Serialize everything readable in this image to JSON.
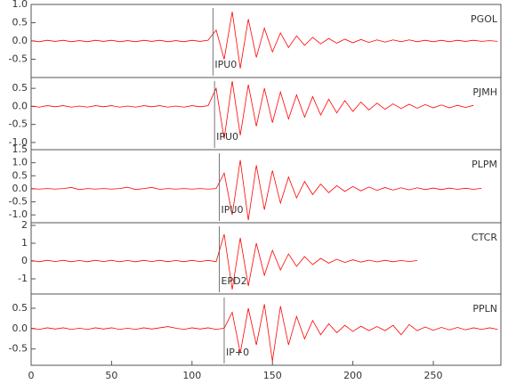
{
  "chart_data": [
    {
      "type": "line",
      "station": "PGOL",
      "pick": "IPU0",
      "pick_x": 113,
      "color": "#ff0000",
      "xlim": [
        0,
        292
      ],
      "ylim": [
        -1.0,
        1.0
      ],
      "yticks": [
        -0.5,
        {
          "value": 0,
          "label": "0.0"
        },
        0.5,
        {
          "value": 1,
          "label": "1.0"
        }
      ],
      "x": [
        0,
        5,
        10,
        15,
        20,
        25,
        30,
        35,
        40,
        45,
        50,
        55,
        60,
        65,
        70,
        75,
        80,
        85,
        90,
        95,
        100,
        105,
        110,
        115,
        120,
        125,
        130,
        135,
        140,
        145,
        150,
        155,
        160,
        165,
        170,
        175,
        180,
        185,
        190,
        195,
        200,
        205,
        210,
        215,
        220,
        225,
        230,
        235,
        240,
        245,
        250,
        255,
        260,
        265,
        270,
        275,
        280,
        285,
        290
      ],
      "values": [
        0.01,
        -0.02,
        0.02,
        -0.01,
        0.02,
        -0.02,
        0.01,
        -0.02,
        0.02,
        -0.01,
        0.02,
        -0.02,
        0.01,
        -0.02,
        0.02,
        -0.01,
        0.02,
        -0.02,
        0.01,
        -0.02,
        0.02,
        -0.01,
        0.02,
        0.3,
        -0.5,
        0.8,
        -0.75,
        0.6,
        -0.45,
        0.35,
        -0.3,
        0.22,
        -0.18,
        0.14,
        -0.12,
        0.1,
        -0.08,
        0.07,
        -0.06,
        0.05,
        -0.05,
        0.04,
        -0.04,
        0.03,
        -0.03,
        0.03,
        -0.02,
        0.03,
        -0.02,
        0.02,
        -0.02,
        0.02,
        -0.02,
        0.02,
        -0.01,
        0.02,
        -0.01,
        0.01,
        -0.01
      ]
    },
    {
      "type": "line",
      "station": "PJMH",
      "pick": "IPU0",
      "pick_x": 114,
      "color": "#ff0000",
      "xlim": [
        0,
        292
      ],
      "ylim": [
        -1.2,
        0.8
      ],
      "yticks": [
        {
          "value": -1,
          "label": "-1.0"
        },
        -0.5,
        {
          "value": 0,
          "label": "0.0"
        },
        0.5
      ],
      "x": [
        0,
        5,
        10,
        15,
        20,
        25,
        30,
        35,
        40,
        45,
        50,
        55,
        60,
        65,
        70,
        75,
        80,
        85,
        90,
        95,
        100,
        105,
        110,
        115,
        120,
        125,
        130,
        135,
        140,
        145,
        150,
        155,
        160,
        165,
        170,
        175,
        180,
        185,
        190,
        195,
        200,
        205,
        210,
        215,
        220,
        225,
        230,
        235,
        240,
        245,
        250,
        255,
        260,
        265,
        270,
        275
      ],
      "values": [
        0.01,
        -0.02,
        0.02,
        -0.01,
        0.02,
        -0.02,
        0.01,
        -0.02,
        0.02,
        -0.01,
        0.02,
        -0.02,
        0.01,
        -0.02,
        0.02,
        -0.01,
        0.02,
        -0.02,
        0.01,
        -0.02,
        0.02,
        -0.01,
        0.02,
        0.5,
        -0.9,
        0.7,
        -0.8,
        0.6,
        -0.55,
        0.5,
        -0.45,
        0.4,
        -0.35,
        0.32,
        -0.3,
        0.27,
        -0.24,
        0.2,
        -0.18,
        0.16,
        -0.14,
        0.12,
        -0.1,
        0.09,
        -0.08,
        0.07,
        -0.06,
        0.06,
        -0.05,
        0.05,
        -0.04,
        0.04,
        -0.04,
        0.03,
        -0.03,
        0.03
      ]
    },
    {
      "type": "line",
      "station": "PLPM",
      "pick": "IPU0",
      "pick_x": 117,
      "color": "#ff0000",
      "xlim": [
        0,
        292
      ],
      "ylim": [
        -1.3,
        1.5
      ],
      "yticks": [
        {
          "value": -1,
          "label": "-1.0"
        },
        -0.5,
        {
          "value": 0,
          "label": "0.0"
        },
        0.5,
        {
          "value": 1,
          "label": "1.0"
        },
        1.5
      ],
      "x": [
        0,
        5,
        10,
        15,
        20,
        25,
        30,
        35,
        40,
        45,
        50,
        55,
        60,
        65,
        70,
        75,
        80,
        85,
        90,
        95,
        100,
        105,
        110,
        115,
        120,
        125,
        130,
        135,
        140,
        145,
        150,
        155,
        160,
        165,
        170,
        175,
        180,
        185,
        190,
        195,
        200,
        205,
        210,
        215,
        220,
        225,
        230,
        235,
        240,
        245,
        250,
        255,
        260,
        265,
        270,
        275,
        280
      ],
      "values": [
        0.01,
        -0.01,
        0.01,
        -0.01,
        0.01,
        0.05,
        -0.03,
        0.01,
        -0.01,
        0.01,
        -0.01,
        0.01,
        0.06,
        -0.03,
        0.01,
        0.05,
        -0.02,
        0.01,
        -0.01,
        0.01,
        -0.01,
        0.01,
        -0.01,
        0.01,
        0.6,
        -1.0,
        1.1,
        -1.2,
        0.9,
        -0.8,
        0.7,
        -0.55,
        0.45,
        -0.35,
        0.28,
        -0.22,
        0.18,
        -0.15,
        0.12,
        -0.1,
        0.09,
        -0.08,
        0.07,
        -0.06,
        0.05,
        -0.05,
        0.04,
        -0.04,
        0.04,
        -0.03,
        0.03,
        -0.03,
        0.03,
        -0.02,
        0.02,
        -0.02,
        0.02
      ]
    },
    {
      "type": "line",
      "station": "CTCR",
      "pick": "EPD2",
      "pick_x": 117,
      "color": "#ff0000",
      "xlim": [
        0,
        292
      ],
      "ylim": [
        -1.85,
        2.15
      ],
      "yticks": [
        -1,
        0,
        1,
        2
      ],
      "x": [
        0,
        5,
        10,
        15,
        20,
        25,
        30,
        35,
        40,
        45,
        50,
        55,
        60,
        65,
        70,
        75,
        80,
        85,
        90,
        95,
        100,
        105,
        110,
        115,
        120,
        125,
        130,
        135,
        140,
        145,
        150,
        155,
        160,
        165,
        170,
        175,
        180,
        185,
        190,
        195,
        200,
        205,
        210,
        215,
        220,
        225,
        230,
        235,
        240
      ],
      "values": [
        0.03,
        -0.04,
        0.04,
        -0.03,
        0.04,
        -0.04,
        0.03,
        -0.04,
        0.04,
        -0.03,
        0.04,
        -0.04,
        0.03,
        -0.04,
        0.04,
        -0.03,
        0.04,
        -0.04,
        0.03,
        -0.04,
        0.04,
        -0.03,
        0.04,
        -0.04,
        1.5,
        -1.6,
        1.3,
        -1.4,
        1.0,
        -0.8,
        0.6,
        -0.5,
        0.4,
        -0.3,
        0.25,
        -0.2,
        0.15,
        -0.12,
        0.1,
        -0.08,
        0.07,
        -0.06,
        0.05,
        -0.05,
        0.04,
        -0.04,
        0.03,
        -0.03,
        0.03
      ]
    },
    {
      "type": "line",
      "station": "PPLN",
      "pick": "IP+0",
      "pick_x": 120,
      "color": "#ff0000",
      "xlim": [
        0,
        292
      ],
      "ylim": [
        -0.9,
        0.85
      ],
      "yticks": [
        -0.5,
        {
          "value": 0,
          "label": "0.0"
        },
        0.5
      ],
      "xticks": [
        0,
        50,
        100,
        150,
        200,
        250
      ],
      "x": [
        0,
        5,
        10,
        15,
        20,
        25,
        30,
        35,
        40,
        45,
        50,
        55,
        60,
        65,
        70,
        75,
        80,
        85,
        90,
        95,
        100,
        105,
        110,
        115,
        120,
        125,
        130,
        135,
        140,
        145,
        150,
        155,
        160,
        165,
        170,
        175,
        180,
        185,
        190,
        195,
        200,
        205,
        210,
        215,
        220,
        225,
        230,
        235,
        240,
        245,
        250,
        255,
        260,
        265,
        270,
        275,
        280,
        285,
        290
      ],
      "values": [
        0.01,
        -0.02,
        0.02,
        -0.01,
        0.02,
        -0.02,
        0.01,
        -0.02,
        0.02,
        -0.01,
        0.02,
        -0.02,
        0.01,
        -0.02,
        0.02,
        -0.01,
        0.02,
        0.05,
        0.01,
        -0.02,
        0.02,
        -0.01,
        0.02,
        -0.02,
        0.01,
        0.4,
        -0.6,
        0.5,
        -0.4,
        0.6,
        -0.8,
        0.55,
        -0.4,
        0.3,
        -0.25,
        0.2,
        -0.15,
        0.12,
        -0.1,
        0.08,
        -0.07,
        0.06,
        -0.05,
        0.05,
        -0.05,
        0.08,
        -0.15,
        0.1,
        -0.05,
        0.04,
        -0.04,
        0.03,
        -0.03,
        0.03,
        -0.03,
        0.02,
        -0.02,
        0.02,
        -0.02
      ]
    }
  ]
}
